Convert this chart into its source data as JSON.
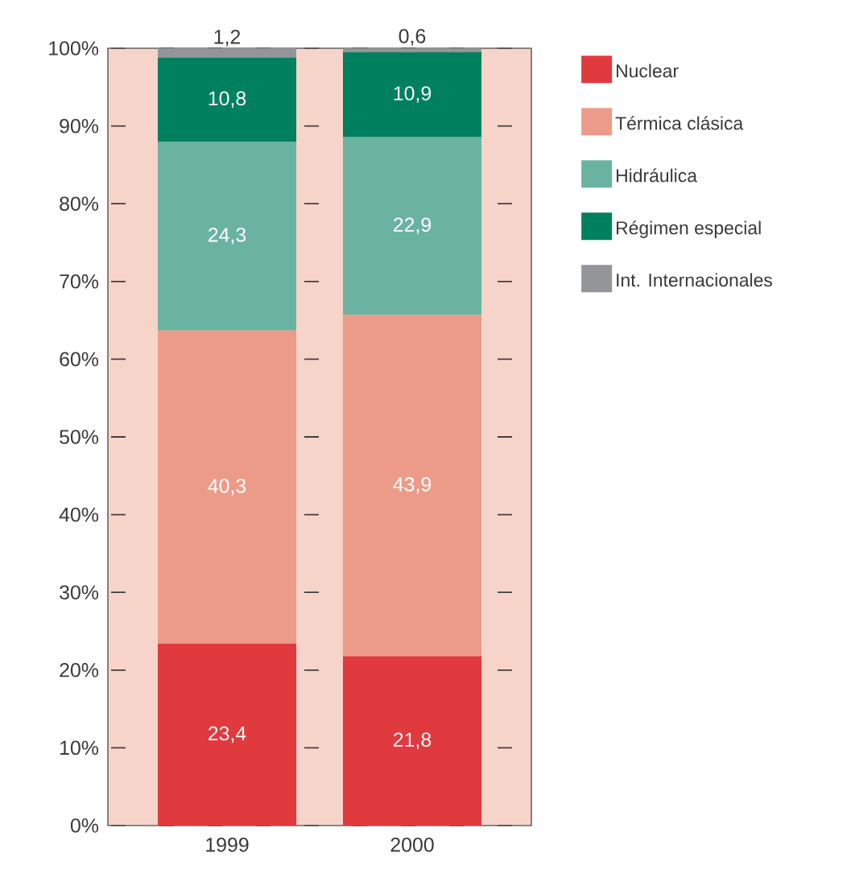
{
  "chart_data": {
    "type": "bar",
    "stacked": true,
    "categories": [
      "1999",
      "2000"
    ],
    "series": [
      {
        "name": "Nuclear",
        "color": "#e03a3e",
        "values": [
          23.4,
          21.8
        ],
        "value_labels": [
          "23,4",
          "21,8"
        ]
      },
      {
        "name": "Térmica clásica",
        "color": "#ed9b89",
        "values": [
          40.3,
          43.9
        ],
        "value_labels": [
          "40,3",
          "43,9"
        ]
      },
      {
        "name": "Hidráulica",
        "color": "#6ab3a0",
        "values": [
          24.3,
          22.9
        ],
        "value_labels": [
          "24,3",
          "22,9"
        ]
      },
      {
        "name": "Régimen especial",
        "color": "#00805e",
        "values": [
          10.8,
          10.9
        ],
        "value_labels": [
          "10,8",
          "10,9"
        ]
      },
      {
        "name": "Int. Internacionales",
        "color": "#939598",
        "values": [
          1.2,
          0.6
        ],
        "value_labels": [
          "1,2",
          "0,6"
        ]
      }
    ],
    "ylim": [
      0,
      100
    ],
    "yticks": [
      {
        "value": 0,
        "label": "0%"
      },
      {
        "value": 10,
        "label": "10%"
      },
      {
        "value": 20,
        "label": "20%"
      },
      {
        "value": 30,
        "label": "30%"
      },
      {
        "value": 40,
        "label": "40%"
      },
      {
        "value": 50,
        "label": "50%"
      },
      {
        "value": 60,
        "label": "60%"
      },
      {
        "value": 70,
        "label": "70%"
      },
      {
        "value": 80,
        "label": "80%"
      },
      {
        "value": 90,
        "label": "90%"
      },
      {
        "value": 100,
        "label": "100%"
      }
    ],
    "grid": "y",
    "legend": "right"
  }
}
